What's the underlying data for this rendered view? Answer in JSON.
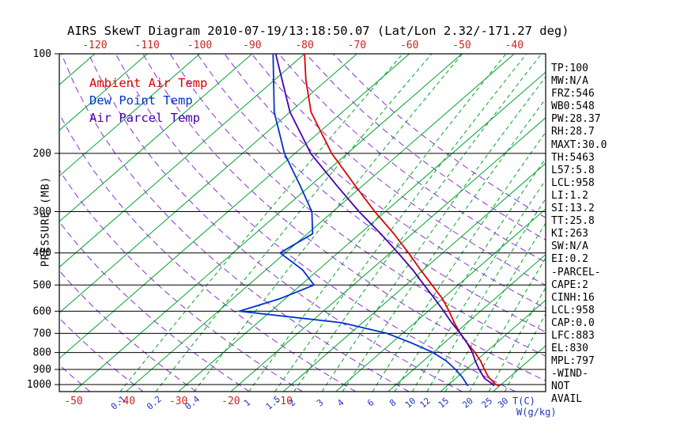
{
  "title": "AIRS SkewT Diagram 2010-07-19/13:18:50.07 (Lat/Lon 2.32/-171.27 deg)",
  "axes": {
    "pressure_label": "PRESSURE (MB)",
    "pressure_ticks": [
      100,
      200,
      300,
      400,
      500,
      600,
      700,
      800,
      900,
      1000
    ],
    "top_temp_ticks": [
      -120,
      -110,
      -100,
      -90,
      -80,
      -70,
      -60,
      -50,
      -40
    ],
    "bottom_temp_ticks": [
      -50,
      -40,
      -30,
      -20,
      -10
    ],
    "temp_unit_label": "T(C)",
    "mixing_unit_label": "W(g/kg)",
    "temp_label_color": "#cc2222",
    "mixing_label_color": "#2233bb"
  },
  "stats_panel": [
    "TP:100",
    "MW:N/A",
    "FRZ:546",
    "WB0:548",
    "PW:28.37",
    "RH:28.7",
    "MAXT:30.0",
    "TH:5463",
    "L57:5.8",
    "LCL:958",
    "LI:1.2",
    "SI:13.2",
    "TT:25.8",
    "KI:263",
    "SW:N/A",
    "EI:0.2",
    "-PARCEL-",
    "CAPE:2",
    "CINH:16",
    "LCL:958",
    "CAP:0.0",
    "LFC:883",
    "EL:830",
    "MPL:797",
    "-WIND-",
    "NOT",
    "AVAIL"
  ],
  "chart_data": {
    "type": "line",
    "variant": "skew-t-log-p",
    "title": "AIRS SkewT Diagram 2010-07-19/13:18:50.07 (Lat/Lon 2.32/-171.27 deg)",
    "ylabel": "PRESSURE (MB)",
    "pressure_range_mb": [
      100,
      1050
    ],
    "temp_range_at_surface_c": [
      -50,
      40
    ],
    "grid": {
      "isotherms_c": {
        "min": -120,
        "max": 40,
        "step": 10,
        "color": "#00a42e"
      },
      "dry_adiabats_c": {
        "min": -50,
        "max": 110,
        "step": 10,
        "color": "#8a2fd6"
      },
      "mixing_ratio_g_kg": [
        0.1,
        0.2,
        0.4,
        1,
        1.5,
        2,
        3,
        4,
        6,
        8,
        10,
        12,
        15,
        20,
        25,
        30
      ],
      "mixing_color": "#00a42e"
    },
    "series": [
      {
        "id": "ambient",
        "name": "Ambient Air Temp",
        "color": "#e00000",
        "points": [
          [
            1010,
            30
          ],
          [
            1000,
            29
          ],
          [
            950,
            26
          ],
          [
            900,
            23.5
          ],
          [
            850,
            21
          ],
          [
            800,
            18
          ],
          [
            750,
            14.5
          ],
          [
            700,
            11
          ],
          [
            650,
            7.5
          ],
          [
            600,
            4
          ],
          [
            550,
            0
          ],
          [
            500,
            -5
          ],
          [
            450,
            -10.5
          ],
          [
            400,
            -16.5
          ],
          [
            350,
            -23.5
          ],
          [
            300,
            -32
          ],
          [
            250,
            -41.5
          ],
          [
            200,
            -53
          ],
          [
            150,
            -66
          ],
          [
            120,
            -74
          ],
          [
            100,
            -80
          ]
        ]
      },
      {
        "id": "dewpoint",
        "name": "Dew Point Temp",
        "color": "#0033cc",
        "points": [
          [
            1010,
            24
          ],
          [
            1000,
            23.5
          ],
          [
            950,
            21
          ],
          [
            900,
            18
          ],
          [
            850,
            14.5
          ],
          [
            800,
            10
          ],
          [
            750,
            4
          ],
          [
            700,
            -3
          ],
          [
            650,
            -14
          ],
          [
            600,
            -36
          ],
          [
            550,
            -31
          ],
          [
            500,
            -27.5
          ],
          [
            450,
            -33
          ],
          [
            400,
            -41
          ],
          [
            350,
            -39
          ],
          [
            300,
            -44
          ],
          [
            250,
            -52
          ],
          [
            200,
            -62
          ],
          [
            150,
            -73
          ],
          [
            100,
            -86
          ]
        ]
      },
      {
        "id": "parcel",
        "name": "Air Parcel Temp",
        "color": "#4400b0",
        "points": [
          [
            1010,
            29
          ],
          [
            1000,
            28.5
          ],
          [
            958,
            25.5
          ],
          [
            900,
            22.5
          ],
          [
            850,
            20
          ],
          [
            800,
            17.5
          ],
          [
            750,
            14.5
          ],
          [
            700,
            11
          ],
          [
            650,
            7
          ],
          [
            600,
            3
          ],
          [
            550,
            -1.5
          ],
          [
            500,
            -6.5
          ],
          [
            450,
            -12
          ],
          [
            400,
            -18.5
          ],
          [
            350,
            -26
          ],
          [
            300,
            -35
          ],
          [
            250,
            -45
          ],
          [
            200,
            -57
          ],
          [
            150,
            -70
          ],
          [
            100,
            -85.5
          ]
        ]
      }
    ]
  }
}
